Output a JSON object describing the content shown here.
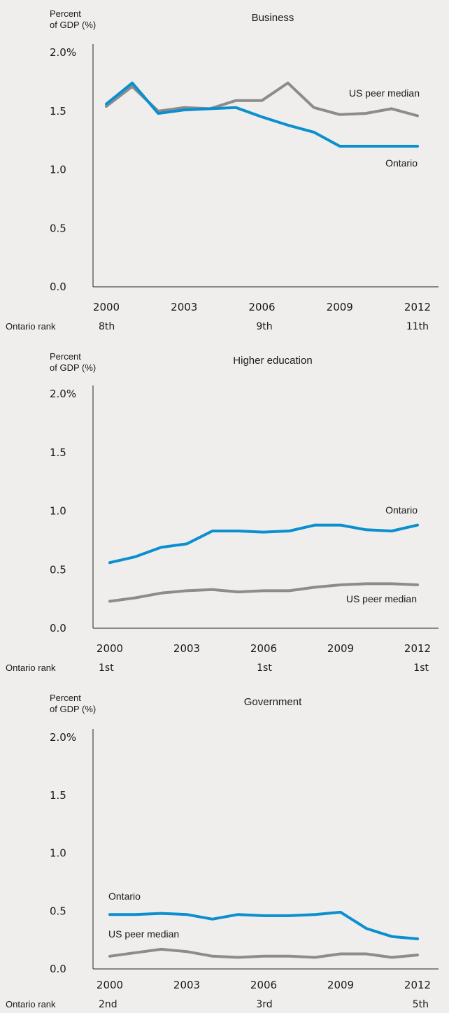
{
  "chart_data": [
    {
      "type": "line",
      "title": "Business",
      "ylabel_line1": "Percent",
      "ylabel_line2": "of GDP (%)",
      "x": [
        2000,
        2001,
        2002,
        2003,
        2004,
        2005,
        2006,
        2007,
        2008,
        2009,
        2010,
        2011,
        2012
      ],
      "xticks": [
        "2000",
        "2003",
        "2006",
        "2009",
        "2012"
      ],
      "yticks": [
        "0.0",
        "0.5",
        "1.0",
        "1.5",
        "2.0%"
      ],
      "ylim": [
        0,
        2.0
      ],
      "series": [
        {
          "name": "Ontario",
          "color": "#0b8fcf",
          "values": [
            1.56,
            1.74,
            1.48,
            1.51,
            1.52,
            1.53,
            1.45,
            1.38,
            1.32,
            1.2,
            1.2,
            1.2,
            1.2
          ]
        },
        {
          "name": "US peer median",
          "color": "#8c8c8c",
          "values": [
            1.54,
            1.71,
            1.5,
            1.53,
            1.52,
            1.59,
            1.59,
            1.74,
            1.53,
            1.47,
            1.48,
            1.52,
            1.46
          ]
        }
      ],
      "rank_label": "Ontario rank",
      "ranks": [
        "8th",
        "9th",
        "11th"
      ],
      "grid": false
    },
    {
      "type": "line",
      "title": "Higher education",
      "ylabel_line1": "Percent",
      "ylabel_line2": "of GDP (%)",
      "x": [
        2000,
        2001,
        2002,
        2003,
        2004,
        2005,
        2006,
        2007,
        2008,
        2009,
        2010,
        2011,
        2012
      ],
      "xticks": [
        "2000",
        "2003",
        "2006",
        "2009",
        "2012"
      ],
      "yticks": [
        "0.0",
        "0.5",
        "1.0",
        "1.5",
        "2.0%"
      ],
      "ylim": [
        0,
        2.0
      ],
      "series": [
        {
          "name": "Ontario",
          "color": "#0b8fcf",
          "values": [
            0.56,
            0.61,
            0.69,
            0.72,
            0.83,
            0.83,
            0.82,
            0.83,
            0.88,
            0.88,
            0.84,
            0.83,
            0.88
          ]
        },
        {
          "name": "US peer median",
          "color": "#8c8c8c",
          "values": [
            0.23,
            0.26,
            0.3,
            0.32,
            0.33,
            0.31,
            0.32,
            0.32,
            0.35,
            0.37,
            0.38,
            0.38,
            0.37
          ]
        }
      ],
      "rank_label": "Ontario rank",
      "ranks": [
        "1st",
        "1st",
        "1st"
      ],
      "grid": false
    },
    {
      "type": "line",
      "title": "Government",
      "ylabel_line1": "Percent",
      "ylabel_line2": "of GDP (%)",
      "x": [
        2000,
        2001,
        2002,
        2003,
        2004,
        2005,
        2006,
        2007,
        2008,
        2009,
        2010,
        2011,
        2012
      ],
      "xticks": [
        "2000",
        "2003",
        "2006",
        "2009",
        "2012"
      ],
      "yticks": [
        "0.0",
        "0.5",
        "1.0",
        "1.5",
        "2.0%"
      ],
      "ylim": [
        0,
        2.0
      ],
      "series": [
        {
          "name": "Ontario",
          "color": "#0b8fcf",
          "values": [
            0.47,
            0.47,
            0.48,
            0.47,
            0.43,
            0.47,
            0.46,
            0.46,
            0.47,
            0.49,
            0.35,
            0.28,
            0.26
          ]
        },
        {
          "name": "US peer median",
          "color": "#8c8c8c",
          "values": [
            0.11,
            0.14,
            0.17,
            0.15,
            0.11,
            0.1,
            0.11,
            0.11,
            0.1,
            0.13,
            0.13,
            0.1,
            0.12
          ]
        }
      ],
      "rank_label": "Ontario rank",
      "ranks": [
        "2nd",
        "3rd",
        "5th"
      ],
      "grid": false
    }
  ]
}
